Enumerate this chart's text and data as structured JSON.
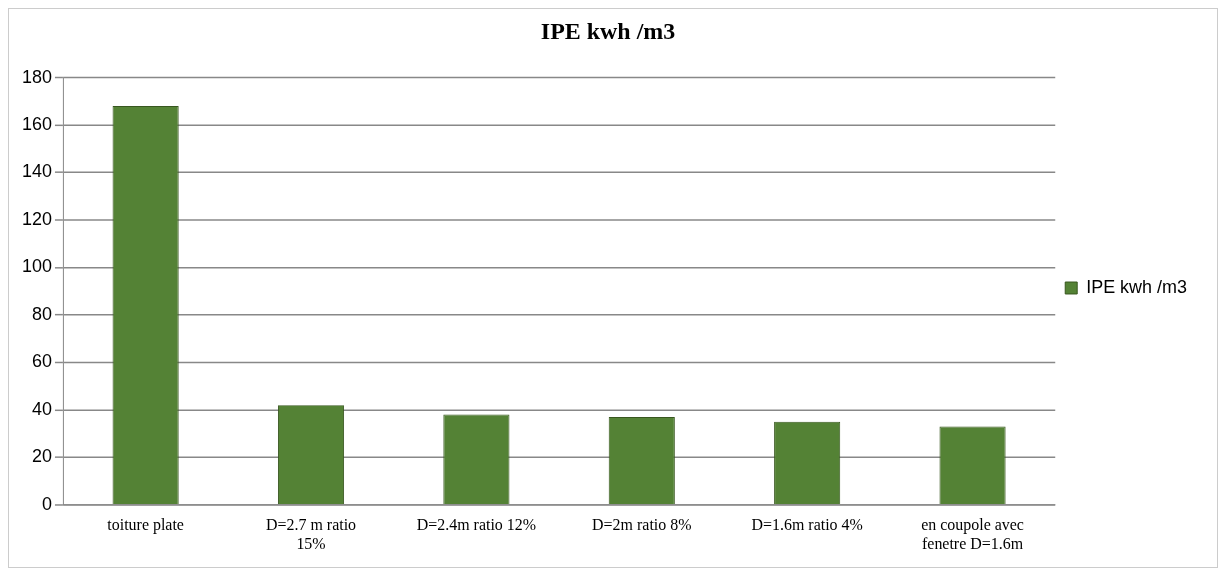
{
  "chart_data": {
    "type": "bar",
    "title": "IPE kwh /m3",
    "categories": [
      "toiture plate",
      "D=2.7 m ratio 15%",
      "D=2.4m ratio 12%",
      "D=2m ratio 8%",
      "D=1.6m ratio 4%",
      "en coupole avec fenetre D=1.6m"
    ],
    "series": [
      {
        "name": "IPE kwh /m3",
        "color": "#548235",
        "values": [
          168,
          42,
          38,
          37,
          35,
          33
        ]
      }
    ],
    "ylim": [
      0,
      180
    ],
    "yticks": [
      0,
      20,
      40,
      60,
      80,
      100,
      120,
      140,
      160,
      180
    ],
    "grid": "y",
    "legend": "right"
  }
}
